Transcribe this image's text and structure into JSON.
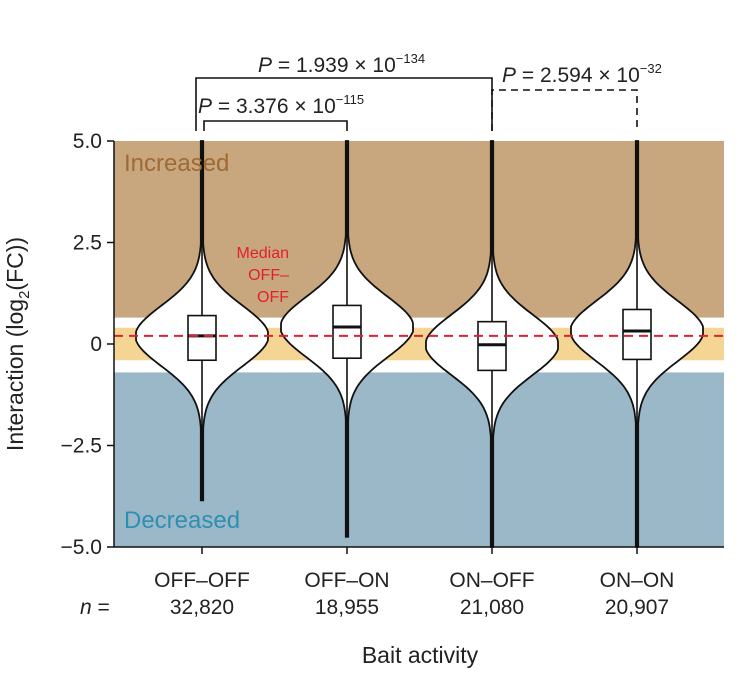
{
  "chart_data": {
    "type": "violin",
    "ylabel_main": "Interaction (log",
    "ylabel_sub": "2",
    "ylabel_tail": "(FC))",
    "xlabel": "Bait activity",
    "ylim": [
      -5.0,
      5.0
    ],
    "yticks": [
      {
        "value": 5.0,
        "label": "5.0"
      },
      {
        "value": 2.5,
        "label": "2.5"
      },
      {
        "value": 0,
        "label": "0"
      },
      {
        "value": -2.5,
        "label": "−2.5"
      },
      {
        "value": -5.0,
        "label": "−5.0"
      }
    ],
    "n_label": "n =",
    "groups": [
      {
        "name": "OFF–OFF",
        "n": "32,820",
        "q1": -0.4,
        "median": 0.2,
        "q3": 0.7,
        "whisker_low": -3.85,
        "whisker_high": 5.0
      },
      {
        "name": "OFF–ON",
        "n": "18,955",
        "q1": -0.35,
        "median": 0.42,
        "q3": 0.95,
        "whisker_low": -4.75,
        "whisker_high": 5.0
      },
      {
        "name": "ON–OFF",
        "n": "21,080",
        "q1": -0.65,
        "median": -0.02,
        "q3": 0.55,
        "whisker_low": -5.0,
        "whisker_high": 5.0
      },
      {
        "name": "ON–ON",
        "n": "20,907",
        "q1": -0.38,
        "median": 0.32,
        "q3": 0.85,
        "whisker_low": -5.0,
        "whisker_high": 5.0
      }
    ],
    "regions": {
      "increased": {
        "label": "Increased",
        "from": 0.65,
        "to": 5.0,
        "color": "#c8a77e"
      },
      "decreased": {
        "label": "Decreased",
        "from": -5.0,
        "to": -0.7,
        "color": "#9bb8c8"
      },
      "band": {
        "from": -0.4,
        "to": 0.4,
        "color": "#f5d594"
      }
    },
    "median_line": {
      "value": 0.2,
      "label_lines": [
        "Median",
        "OFF–",
        "OFF"
      ],
      "color": "#e4202e"
    },
    "comparisons": [
      {
        "from": 0,
        "to": 1,
        "p_base": "3.376 × 10",
        "p_exp": "−115",
        "style": "solid"
      },
      {
        "from": 0,
        "to": 2,
        "p_base": "1.939 × 10",
        "p_exp": "−134",
        "style": "solid"
      },
      {
        "from": 2,
        "to": 3,
        "p_base": "2.594 × 10",
        "p_exp": "−32",
        "style": "dashed"
      }
    ],
    "p_symbol": "P",
    "colors": {
      "increased_text": "#9e6a35",
      "decreased_text": "#2f8fb0",
      "axis": "#000000"
    }
  }
}
